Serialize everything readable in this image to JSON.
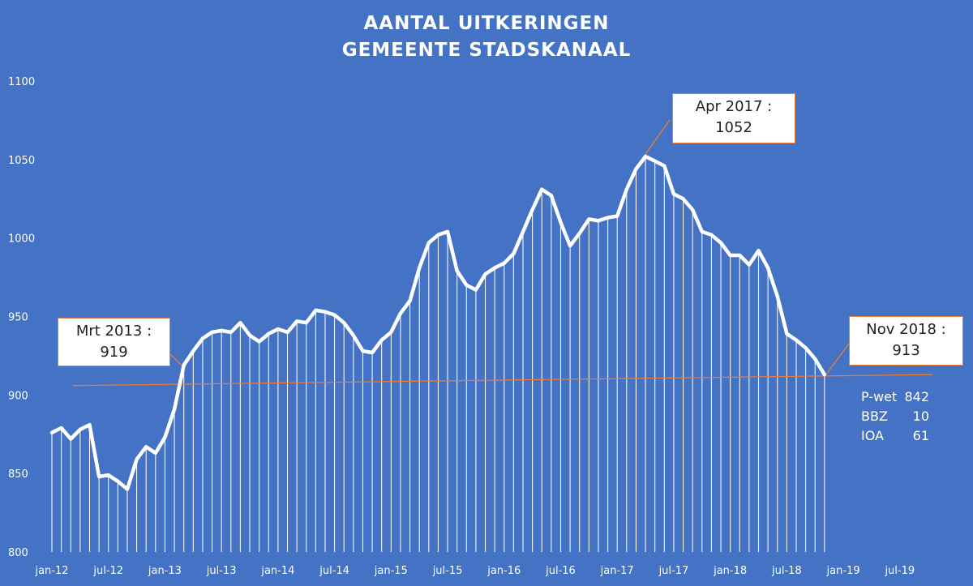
{
  "chart_data": {
    "type": "line",
    "title": "AANTAL UITKERINGEN",
    "subtitle": "GEMEENTE STADSKANAAL",
    "ylim": [
      800,
      1100
    ],
    "yticks": [
      800,
      850,
      900,
      950,
      1000,
      1050,
      1100
    ],
    "xticks": [
      "jan-12",
      "jul-12",
      "jan-13",
      "jul-13",
      "jan-14",
      "jul-14",
      "jan-15",
      "jul-15",
      "jan-16",
      "jul-16",
      "jan-17",
      "jul-17",
      "jan-18",
      "jul-18",
      "jan-19",
      "jul-19"
    ],
    "x_start": "jan-12",
    "x_end": "dec-19",
    "grid": false,
    "series": [
      {
        "values": [
          876,
          879,
          872,
          878,
          881,
          848,
          849,
          845,
          840,
          859,
          867,
          863,
          873,
          891,
          919,
          928,
          936,
          940,
          941,
          940,
          946,
          938,
          934,
          939,
          942,
          940,
          947,
          946,
          954,
          953,
          951,
          946,
          938,
          928,
          927,
          935,
          940,
          952,
          960,
          981,
          997,
          1002,
          1004,
          979,
          970,
          967,
          977,
          981,
          984,
          990,
          1004,
          1018,
          1031,
          1027,
          1010,
          995,
          1003,
          1012,
          1011,
          1013,
          1014,
          1031,
          1044,
          1052,
          1049,
          1046,
          1028,
          1025,
          1018,
          1004,
          1002,
          997,
          989,
          989,
          983,
          992,
          981,
          963,
          939,
          935,
          930,
          923,
          913
        ]
      }
    ],
    "trendline": {
      "start": 906,
      "end": 913
    }
  },
  "annotations": [
    {
      "label": "Mrt 2013 :",
      "value": "919"
    },
    {
      "label": "Apr 2017 :",
      "value": "1052"
    },
    {
      "label": "Nov 2018 :",
      "value": "913"
    }
  ],
  "breakdown": [
    {
      "label": "P-wet",
      "value": "842"
    },
    {
      "label": "BBZ",
      "value": "10"
    },
    {
      "label": "IOA",
      "value": "61"
    }
  ],
  "colors": {
    "background": "#4472C4",
    "line": "#FFFFFF",
    "trendline": "#ED7D31",
    "callout_border": "#ED7D31",
    "callout_fill": "#FFFFFF",
    "text": "#FFFFFF"
  }
}
